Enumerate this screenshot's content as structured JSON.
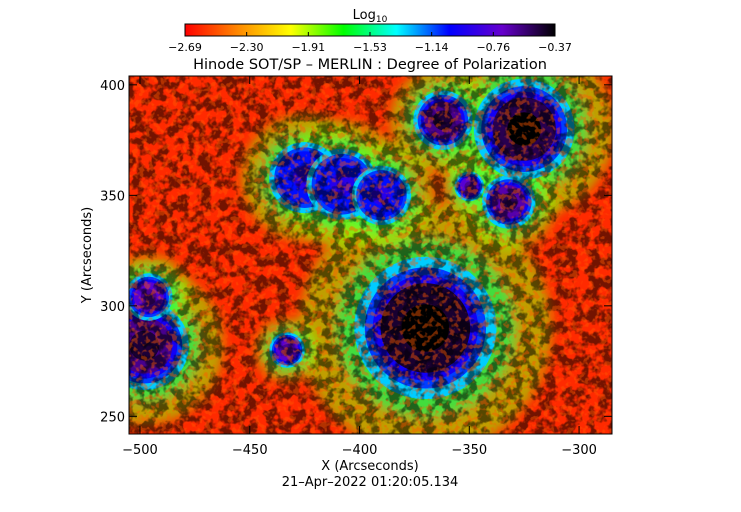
{
  "chart_data": {
    "type": "heatmap",
    "title": "Hinode SOT/SP – MERLIN : Degree of Polarization",
    "colorbar_label": "Log10",
    "colorbar_label_base": "Log",
    "colorbar_label_sub": "10",
    "colorbar_ticks": [
      "−2.69",
      "−2.30",
      "−1.91",
      "−1.53",
      "−1.14",
      "−0.76",
      "−0.37"
    ],
    "colorbar_range": [
      -2.69,
      -0.37
    ],
    "colormap": [
      "#ff0000",
      "#ff8800",
      "#ffff00",
      "#00ff00",
      "#00ffff",
      "#0000ff",
      "#6600cc",
      "#000000"
    ],
    "xlabel": "X (Arcseconds)",
    "ylabel": "Y (Arcseconds)",
    "xlim": [
      -505,
      -285
    ],
    "ylim": [
      242,
      404
    ],
    "xticks": [
      -500,
      -450,
      -400,
      -350,
      -300
    ],
    "yticks": [
      250,
      300,
      350,
      400
    ],
    "xtick_labels": [
      "−500",
      "−450",
      "−400",
      "−350",
      "−300"
    ],
    "ytick_labels": [
      "250",
      "300",
      "350",
      "400"
    ],
    "timestamp": "21–Apr–2022 01:20:05.134",
    "features": [
      {
        "x": -370,
        "y": 290,
        "r": 24,
        "level": -0.45
      },
      {
        "x": -325,
        "y": 380,
        "r": 17,
        "level": -0.5
      },
      {
        "x": -362,
        "y": 384,
        "r": 10,
        "level": -0.6
      },
      {
        "x": -332,
        "y": 347,
        "r": 9,
        "level": -0.65
      },
      {
        "x": -350,
        "y": 354,
        "r": 5,
        "level": -0.75
      },
      {
        "x": -498,
        "y": 282,
        "r": 15,
        "level": -0.6
      },
      {
        "x": -496,
        "y": 304,
        "r": 8,
        "level": -0.75
      },
      {
        "x": -433,
        "y": 280,
        "r": 6,
        "level": -0.75
      },
      {
        "x": -425,
        "y": 358,
        "r": 12,
        "level": -1.05
      },
      {
        "x": -408,
        "y": 355,
        "r": 12,
        "level": -1.05
      },
      {
        "x": -390,
        "y": 350,
        "r": 10,
        "level": -1.05
      }
    ]
  }
}
